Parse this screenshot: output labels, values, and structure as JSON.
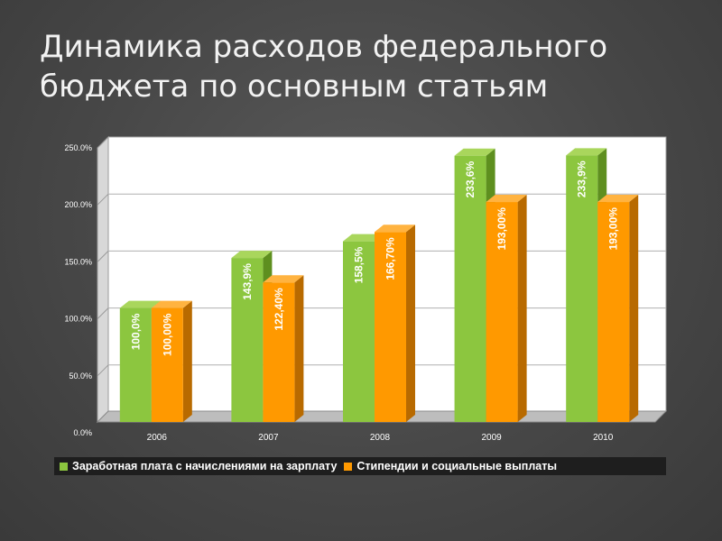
{
  "slide": {
    "title_line1": "Динамика расходов федерального",
    "title_line2": "бюджета по основным статьям"
  },
  "chart_data": {
    "type": "bar",
    "categories": [
      "2006",
      "2007",
      "2008",
      "2009",
      "2010"
    ],
    "series": [
      {
        "name": "Заработная плата с начислениями на зарплату",
        "values": [
          100.0,
          143.9,
          158.5,
          233.6,
          233.9
        ],
        "labels": [
          "100,0%",
          "143,9%",
          "158,5%",
          "233,6%",
          "233,9%"
        ],
        "color": "#8cc63f",
        "side_color": "#5e8f1f",
        "top_color": "#a9d65c"
      },
      {
        "name": "Стипендии и социальные выплаты",
        "values": [
          100.0,
          122.4,
          166.7,
          193.0,
          193.0
        ],
        "labels": [
          "100,00%",
          "122,40%",
          "166,70%",
          "193,00%",
          "193,00%"
        ],
        "color": "#ff9900",
        "side_color": "#b86a00",
        "top_color": "#ffb340"
      }
    ],
    "yticks": [
      "0.0%",
      "50.0%",
      "100.0%",
      "150.0%",
      "200.0%",
      "250.0%"
    ],
    "ylim": [
      0,
      250
    ],
    "grid": true,
    "legend_position": "bottom",
    "plot_background": "#ffffff",
    "title": "",
    "xlabel": "",
    "ylabel": ""
  }
}
